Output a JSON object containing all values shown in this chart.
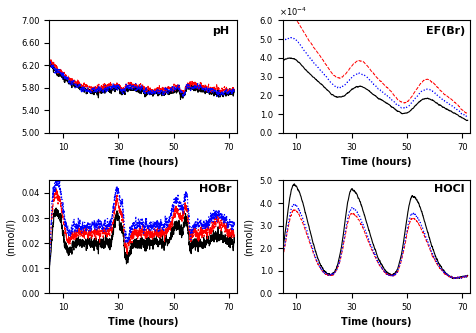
{
  "title_fontsize": 8,
  "label_fontsize": 7,
  "tick_fontsize": 6,
  "xlim": [
    5,
    73
  ],
  "xticks": [
    10,
    30,
    50,
    70
  ],
  "pH_ylim": [
    5.0,
    7.0
  ],
  "pH_yticks": [
    5.0,
    5.4,
    5.8,
    6.2,
    6.6,
    7.0
  ],
  "EFBr_ylim": [
    0.0,
    0.0006
  ],
  "EFBr_yticks": [
    0.0,
    0.0001,
    0.0002,
    0.0003,
    0.0004,
    0.0005,
    0.0006
  ],
  "HOBr_ylim": [
    0.0,
    0.045
  ],
  "HOBr_yticks": [
    0.0,
    0.01,
    0.02,
    0.03,
    0.04
  ],
  "HOCl_ylim": [
    0.0,
    5.0
  ],
  "HOCl_yticks": [
    0.0,
    1.0,
    2.0,
    3.0,
    4.0,
    5.0
  ]
}
